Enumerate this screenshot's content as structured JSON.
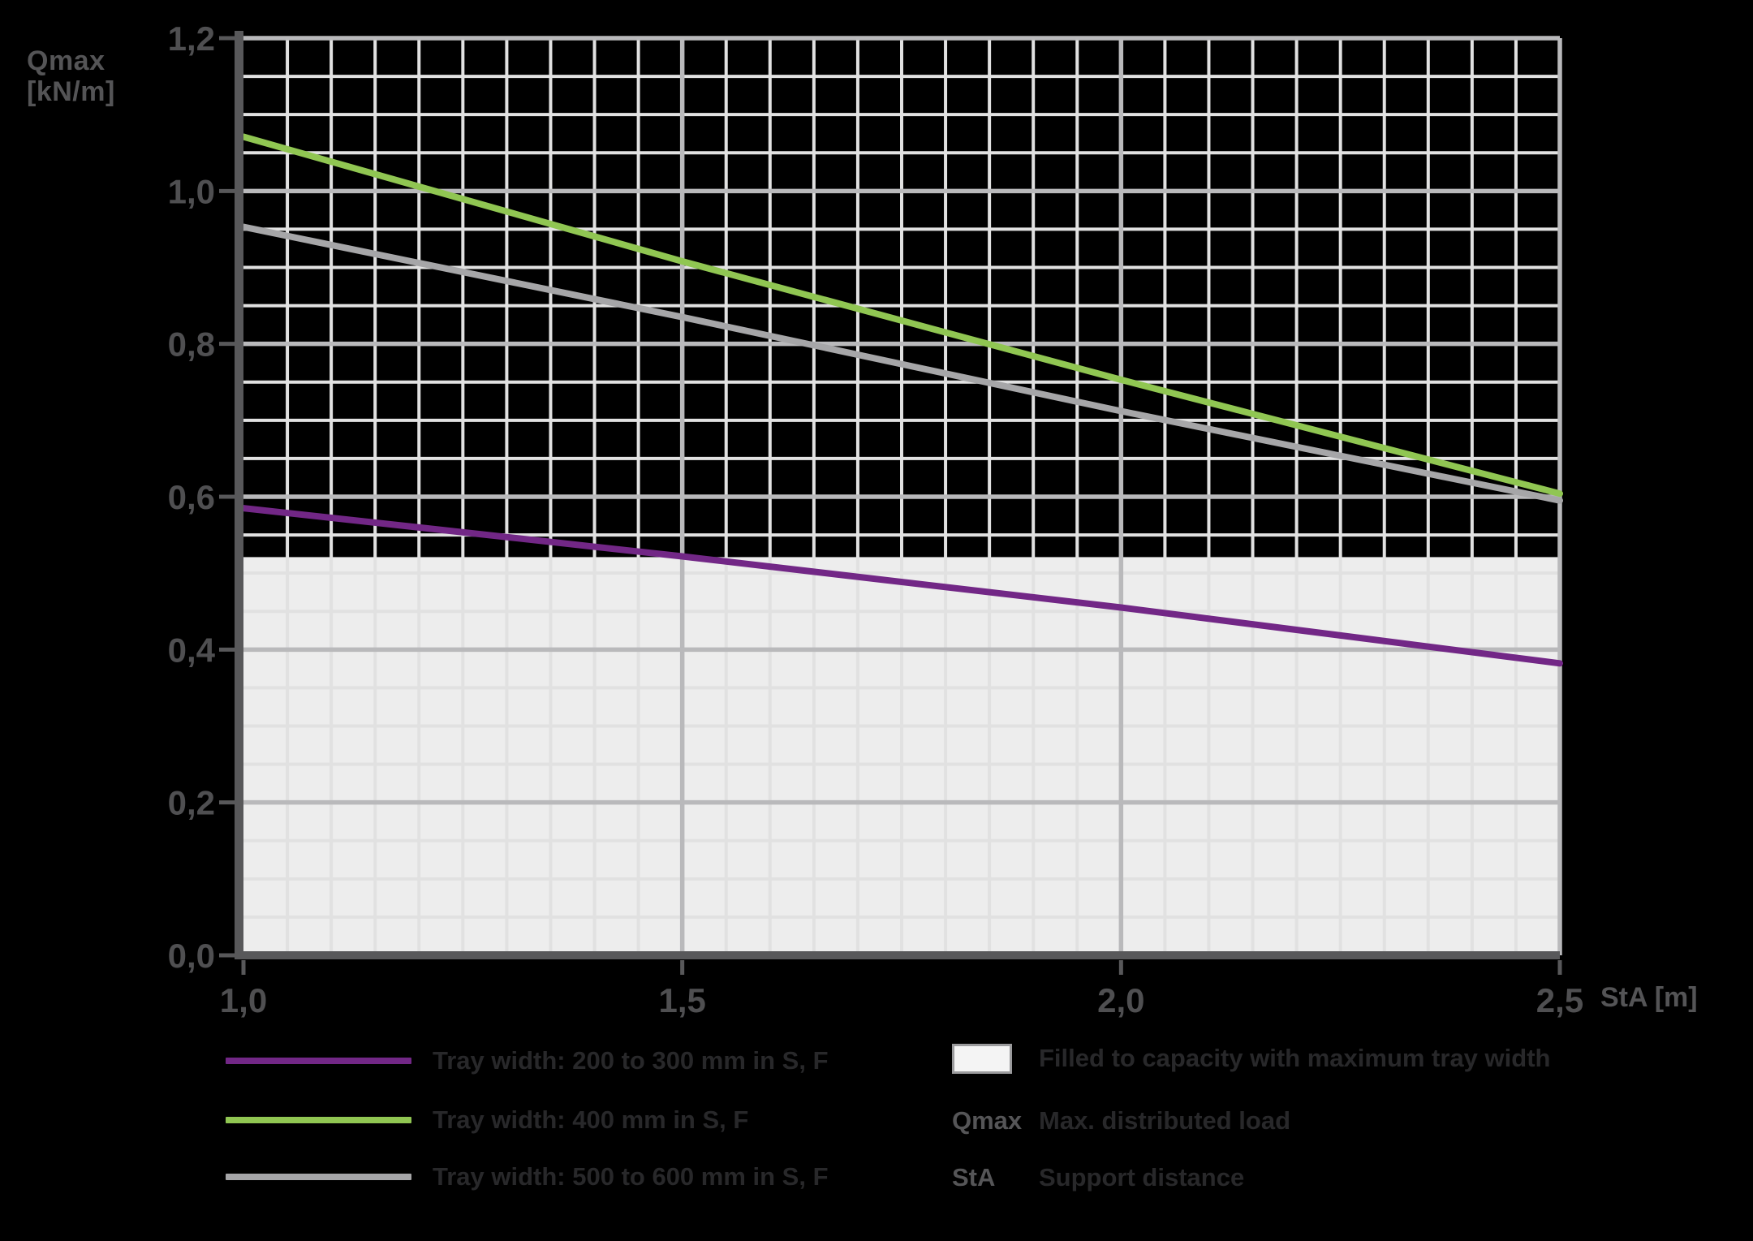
{
  "axis": {
    "y_title_line1": "Qmax",
    "y_title_line2": "[kN/m]",
    "x_unit": "StA [m]"
  },
  "chart_data": {
    "type": "line",
    "title": "",
    "xlabel": "StA [m]",
    "ylabel": "Qmax [kN/m]",
    "xlim": [
      1.0,
      2.5
    ],
    "ylim": [
      0.0,
      1.2
    ],
    "x_major_step": 0.5,
    "y_major_step": 0.2,
    "minor_step": 0.05,
    "grid": "minor and major, on",
    "legend_position": "bottom",
    "x_ticks": [
      {
        "v": 1.0,
        "label": "1,0"
      },
      {
        "v": 1.5,
        "label": "1,5"
      },
      {
        "v": 2.0,
        "label": "2,0"
      },
      {
        "v": 2.5,
        "label": "2,5"
      }
    ],
    "y_ticks": [
      {
        "v": 0.0,
        "label": "0,0"
      },
      {
        "v": 0.2,
        "label": "0,2"
      },
      {
        "v": 0.4,
        "label": "0,4"
      },
      {
        "v": 0.6,
        "label": "0,6"
      },
      {
        "v": 0.8,
        "label": "0,8"
      },
      {
        "v": 1.0,
        "label": "1,0"
      },
      {
        "v": 1.2,
        "label": "1,2"
      }
    ],
    "x": [
      1.0,
      1.5,
      2.0,
      2.5
    ],
    "series": [
      {
        "name": "Tray width: 200 to 300 mm in S, F",
        "color": "#722786",
        "values": [
          0.585,
          0.522,
          0.455,
          0.382
        ]
      },
      {
        "name": "Tray width: 400 mm in S, F",
        "color": "#90c652",
        "values": [
          1.071,
          0.908,
          0.753,
          0.604
        ]
      },
      {
        "name": "Tray width: 500 to 600 mm in S, F",
        "color": "#a6a6a8",
        "values": [
          0.953,
          0.835,
          0.712,
          0.595
        ]
      }
    ],
    "filled_region": {
      "from": 0.0,
      "to": 0.521,
      "color": "#ededed",
      "label": "Filled to capacity with maximum tray width"
    },
    "grid_minor_color": "#e1e1e1",
    "grid_major_color": "#b9b9bb",
    "axis_color": "#58585a"
  },
  "legend": {
    "fill_item": {
      "swatch_fill": "#f4f4f4",
      "swatch_border": "#9b9b9d"
    },
    "definitions": [
      {
        "term": "Qmax",
        "description": "Max. distributed load"
      },
      {
        "term": "StA",
        "description": "Support distance"
      }
    ]
  }
}
